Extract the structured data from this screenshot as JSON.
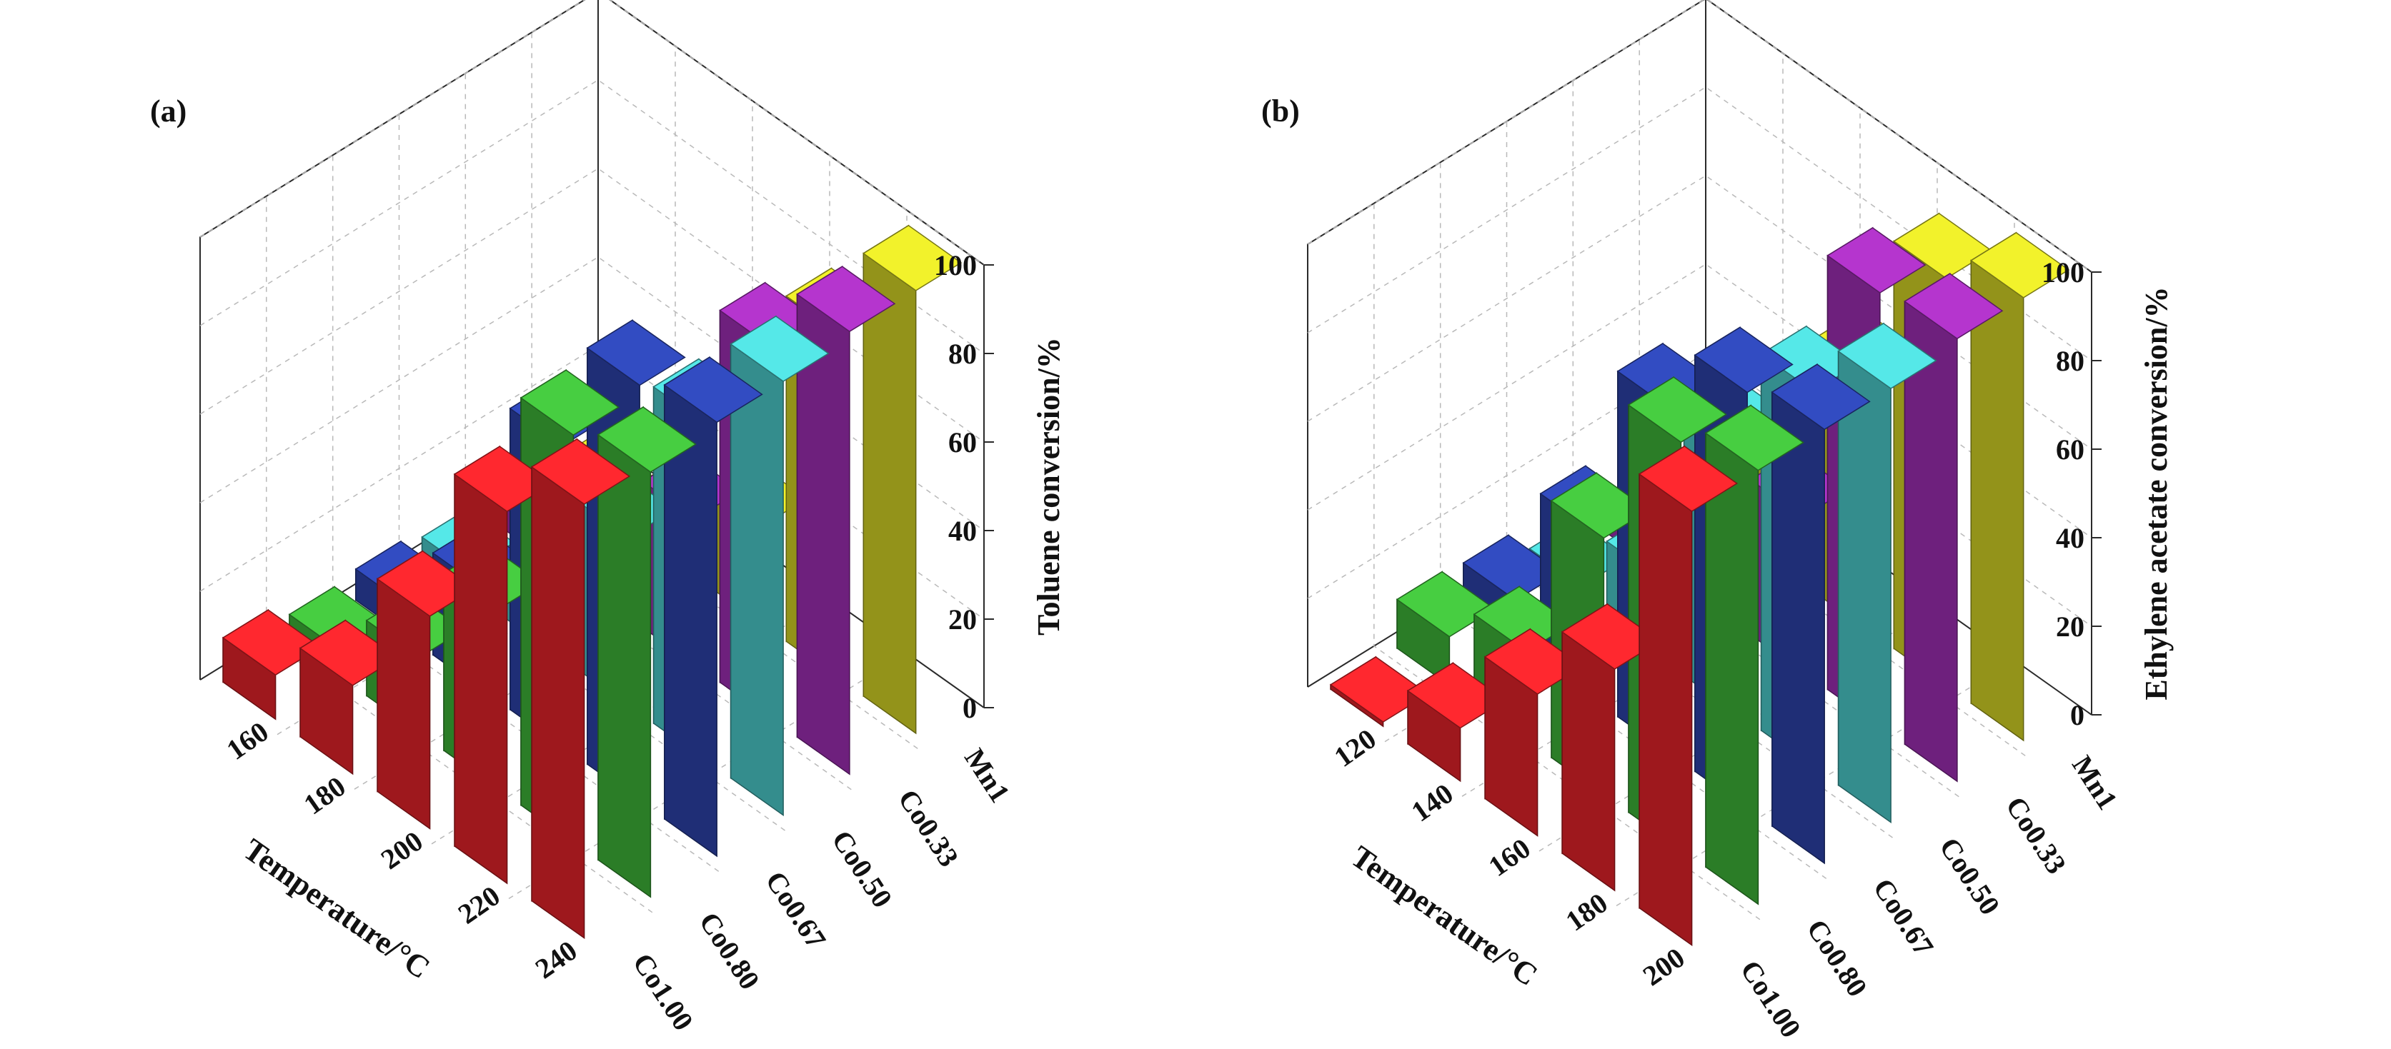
{
  "colors": {
    "Co1.00": "#e8242a",
    "Co0.80": "#3fb83a",
    "Co0.67": "#2d44ad",
    "Co0.50": "#4ccfcf",
    "Co0.33": "#a22fb8",
    "Mn1": "#d8d826"
  },
  "chart_data": [
    {
      "type": "bar3d",
      "panel_label": "(a)",
      "title": "",
      "xlabel": "Temperature/°C",
      "ylabel": "",
      "zlabel": "Toluene conversion/%",
      "zlim": [
        0,
        100
      ],
      "z_ticks": [
        "0",
        "20",
        "40",
        "60",
        "80",
        "100"
      ],
      "temperatures": [
        "160",
        "180",
        "200",
        "220",
        "240"
      ],
      "temperature_tick_labels": [
        "240",
        "220",
        "200",
        "180",
        "160"
      ],
      "catalysts": [
        "Co1.00",
        "Co0.80",
        "Co0.67",
        "Co0.50",
        "Co0.33",
        "Mn1"
      ],
      "catalyst_tick_labels": [
        "Co1.00",
        "Co0.80",
        "Co0.67",
        "Co0.50",
        "Co0.33",
        "Mn1"
      ],
      "series": [
        {
          "name": "Co1.00",
          "values": [
            10,
            20,
            48,
            84,
            98
          ]
        },
        {
          "name": "Co0.80",
          "values": [
            6,
            17,
            40,
            92,
            96
          ]
        },
        {
          "name": "Co0.67",
          "values": [
            7,
            23,
            68,
            94,
            98
          ]
        },
        {
          "name": "Co0.50",
          "values": [
            5,
            14,
            38,
            76,
            98
          ]
        },
        {
          "name": "Co0.33",
          "values": [
            5,
            12,
            33,
            84,
            100
          ]
        },
        {
          "name": "Mn1",
          "values": [
            4,
            10,
            22,
            78,
            100
          ]
        }
      ]
    },
    {
      "type": "bar3d",
      "panel_label": "(b)",
      "title": "",
      "xlabel": "Temperature/°C",
      "ylabel": "",
      "zlabel": "Ethylene acetate conversion/%",
      "zlim": [
        0,
        100
      ],
      "z_ticks": [
        "0",
        "20",
        "40",
        "60",
        "80",
        "100"
      ],
      "temperatures": [
        "120",
        "140",
        "160",
        "180",
        "200"
      ],
      "temperature_tick_labels": [
        "200",
        "180",
        "160",
        "140",
        "120"
      ],
      "catalysts": [
        "Co1.00",
        "Co0.80",
        "Co0.67",
        "Co0.50",
        "Co0.33",
        "Mn1"
      ],
      "catalyst_tick_labels": [
        "Co1.00",
        "Co0.80",
        "Co0.67",
        "Co0.50",
        "Co0.33",
        "Mn1"
      ],
      "series": [
        {
          "name": "Co1.00",
          "values": [
            1,
            12,
            32,
            50,
            98
          ]
        },
        {
          "name": "Co0.80",
          "values": [
            11,
            20,
            58,
            92,
            98
          ]
        },
        {
          "name": "Co0.67",
          "values": [
            10,
            38,
            78,
            94,
            98
          ]
        },
        {
          "name": "Co0.50",
          "values": [
            4,
            18,
            62,
            85,
            98
          ]
        },
        {
          "name": "Co0.33",
          "values": [
            5,
            13,
            35,
            98,
            100
          ]
        },
        {
          "name": "Mn1",
          "values": [
            3,
            22,
            58,
            92,
            100
          ]
        }
      ]
    }
  ]
}
